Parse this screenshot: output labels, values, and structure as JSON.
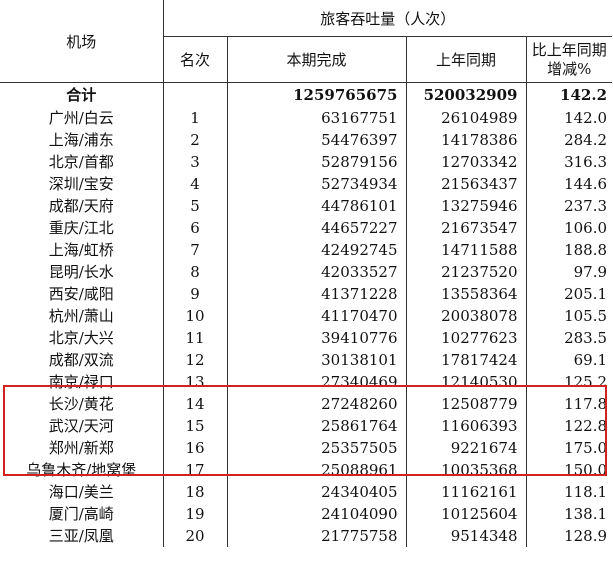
{
  "header": {
    "airport": "机场",
    "group": "旅客吞吐量（人次）",
    "rank": "名次",
    "current": "本期完成",
    "last_year": "上年同期",
    "change_line1": "比上年同期",
    "change_line2": "增减%"
  },
  "total": {
    "name": "合计",
    "current": "1259765675",
    "last_year": "520032909",
    "change": "142.2"
  },
  "rows": [
    {
      "name": "广州/白云",
      "rank": "1",
      "current": "63167751",
      "last_year": "26104989",
      "change": "142.0"
    },
    {
      "name": "上海/浦东",
      "rank": "2",
      "current": "54476397",
      "last_year": "14178386",
      "change": "284.2"
    },
    {
      "name": "北京/首都",
      "rank": "3",
      "current": "52879156",
      "last_year": "12703342",
      "change": "316.3"
    },
    {
      "name": "深圳/宝安",
      "rank": "4",
      "current": "52734934",
      "last_year": "21563437",
      "change": "144.6"
    },
    {
      "name": "成都/天府",
      "rank": "5",
      "current": "44786101",
      "last_year": "13275946",
      "change": "237.3"
    },
    {
      "name": "重庆/江北",
      "rank": "6",
      "current": "44657227",
      "last_year": "21673547",
      "change": "106.0"
    },
    {
      "name": "上海/虹桥",
      "rank": "7",
      "current": "42492745",
      "last_year": "14711588",
      "change": "188.8"
    },
    {
      "name": "昆明/长水",
      "rank": "8",
      "current": "42033527",
      "last_year": "21237520",
      "change": "97.9"
    },
    {
      "name": "西安/咸阳",
      "rank": "9",
      "current": "41371228",
      "last_year": "13558364",
      "change": "205.1"
    },
    {
      "name": "杭州/萧山",
      "rank": "10",
      "current": "41170470",
      "last_year": "20038078",
      "change": "105.5"
    },
    {
      "name": "北京/大兴",
      "rank": "11",
      "current": "39410776",
      "last_year": "10277623",
      "change": "283.5"
    },
    {
      "name": "成都/双流",
      "rank": "12",
      "current": "30138101",
      "last_year": "17817424",
      "change": "69.1"
    },
    {
      "name": "南京/禄口",
      "rank": "13",
      "current": "27340469",
      "last_year": "12140530",
      "change": "125.2"
    },
    {
      "name": "长沙/黄花",
      "rank": "14",
      "current": "27248260",
      "last_year": "12508779",
      "change": "117.8"
    },
    {
      "name": "武汉/天河",
      "rank": "15",
      "current": "25861764",
      "last_year": "11606393",
      "change": "122.8"
    },
    {
      "name": "郑州/新郑",
      "rank": "16",
      "current": "25357505",
      "last_year": "9221674",
      "change": "175.0"
    },
    {
      "name": "乌鲁木齐/地窝堡",
      "rank": "17",
      "current": "25088961",
      "last_year": "10035368",
      "change": "150.0"
    },
    {
      "name": "海口/美兰",
      "rank": "18",
      "current": "24340405",
      "last_year": "11162161",
      "change": "118.1"
    },
    {
      "name": "厦门/高崎",
      "rank": "19",
      "current": "24104090",
      "last_year": "10125604",
      "change": "138.1"
    },
    {
      "name": "三亚/凤凰",
      "rank": "20",
      "current": "21775758",
      "last_year": "9514348",
      "change": "128.9"
    }
  ],
  "highlight_color": "#d32020"
}
